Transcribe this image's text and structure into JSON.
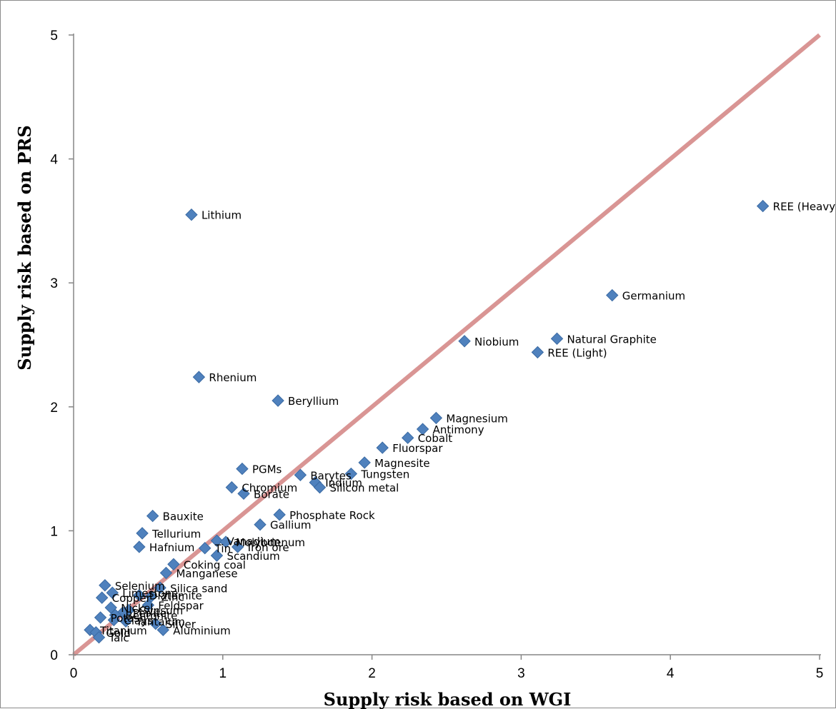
{
  "chart_data": {
    "type": "scatter",
    "xlabel": "Supply risk based on WGI",
    "ylabel": "Supply risk based on PRS",
    "xlim": [
      0,
      5
    ],
    "ylim": [
      0,
      5
    ],
    "xticks": [
      "0",
      "1",
      "2",
      "3",
      "4",
      "5"
    ],
    "yticks": [
      "0",
      "1",
      "2",
      "3",
      "4",
      "5"
    ],
    "grid": false,
    "legend": "none",
    "reference_line": {
      "from": [
        0,
        0
      ],
      "to": [
        5,
        5
      ],
      "color": "#d99594"
    },
    "marker_color": "#4f81bd",
    "points": [
      {
        "label": "Lithium",
        "x": 0.79,
        "y": 3.55
      },
      {
        "label": "REE (Heavy)",
        "x": 4.62,
        "y": 3.62
      },
      {
        "label": "Germanium",
        "x": 3.61,
        "y": 2.9
      },
      {
        "label": "Natural Graphite",
        "x": 3.24,
        "y": 2.55
      },
      {
        "label": "REE (Light)",
        "x": 3.11,
        "y": 2.44
      },
      {
        "label": "Niobium",
        "x": 2.62,
        "y": 2.53
      },
      {
        "label": "Rhenium",
        "x": 0.84,
        "y": 2.24
      },
      {
        "label": "Beryllium",
        "x": 1.37,
        "y": 2.05
      },
      {
        "label": "Magnesium",
        "x": 2.43,
        "y": 1.91
      },
      {
        "label": "Antimony",
        "x": 2.34,
        "y": 1.82
      },
      {
        "label": "Cobalt",
        "x": 2.24,
        "y": 1.75
      },
      {
        "label": "Fluorspar",
        "x": 2.07,
        "y": 1.67
      },
      {
        "label": "Magnesite",
        "x": 1.95,
        "y": 1.55
      },
      {
        "label": "Tungsten",
        "x": 1.86,
        "y": 1.46
      },
      {
        "label": "PGMs",
        "x": 1.13,
        "y": 1.5
      },
      {
        "label": "Barytes",
        "x": 1.52,
        "y": 1.45
      },
      {
        "label": "Indium",
        "x": 1.62,
        "y": 1.39
      },
      {
        "label": "Silicon metal",
        "x": 1.65,
        "y": 1.35
      },
      {
        "label": "Chromium",
        "x": 1.06,
        "y": 1.35
      },
      {
        "label": "Borate",
        "x": 1.14,
        "y": 1.3
      },
      {
        "label": "Bauxite",
        "x": 0.53,
        "y": 1.12
      },
      {
        "label": "Phosphate Rock",
        "x": 1.38,
        "y": 1.13
      },
      {
        "label": "Gallium",
        "x": 1.25,
        "y": 1.05
      },
      {
        "label": "Tellurium",
        "x": 0.46,
        "y": 0.98
      },
      {
        "label": "Vanadium",
        "x": 0.96,
        "y": 0.92
      },
      {
        "label": "Molybdenum",
        "x": 1.02,
        "y": 0.91
      },
      {
        "label": "Hafnium",
        "x": 0.44,
        "y": 0.87
      },
      {
        "label": "Tin",
        "x": 0.88,
        "y": 0.86
      },
      {
        "label": "Iron ore",
        "x": 1.1,
        "y": 0.87
      },
      {
        "label": "Scandium",
        "x": 0.96,
        "y": 0.8
      },
      {
        "label": "Coking coal",
        "x": 0.67,
        "y": 0.73
      },
      {
        "label": "Manganese",
        "x": 0.62,
        "y": 0.66
      },
      {
        "label": "Selenium",
        "x": 0.21,
        "y": 0.56
      },
      {
        "label": "Silica sand",
        "x": 0.58,
        "y": 0.54
      },
      {
        "label": "Limestone",
        "x": 0.26,
        "y": 0.5
      },
      {
        "label": "Zinc",
        "x": 0.52,
        "y": 0.47
      },
      {
        "label": "Copper",
        "x": 0.19,
        "y": 0.46
      },
      {
        "label": "Diatomite",
        "x": 0.44,
        "y": 0.48
      },
      {
        "label": "Feldspar",
        "x": 0.5,
        "y": 0.4
      },
      {
        "label": "Nickel",
        "x": 0.25,
        "y": 0.38
      },
      {
        "label": "Gypsum",
        "x": 0.37,
        "y": 0.36
      },
      {
        "label": "Perlite",
        "x": 0.33,
        "y": 0.34
      },
      {
        "label": "Bentonite",
        "x": 0.28,
        "y": 0.32
      },
      {
        "label": "Potash",
        "x": 0.18,
        "y": 0.3
      },
      {
        "label": "Clays",
        "x": 0.27,
        "y": 0.28
      },
      {
        "label": "Silver",
        "x": 0.55,
        "y": 0.25
      },
      {
        "label": "Tantalum",
        "x": 0.35,
        "y": 0.27
      },
      {
        "label": "Titanium",
        "x": 0.11,
        "y": 0.2
      },
      {
        "label": "Aluminium",
        "x": 0.6,
        "y": 0.2
      },
      {
        "label": "Gold",
        "x": 0.15,
        "y": 0.18
      },
      {
        "label": "Talc",
        "x": 0.17,
        "y": 0.14
      }
    ]
  }
}
